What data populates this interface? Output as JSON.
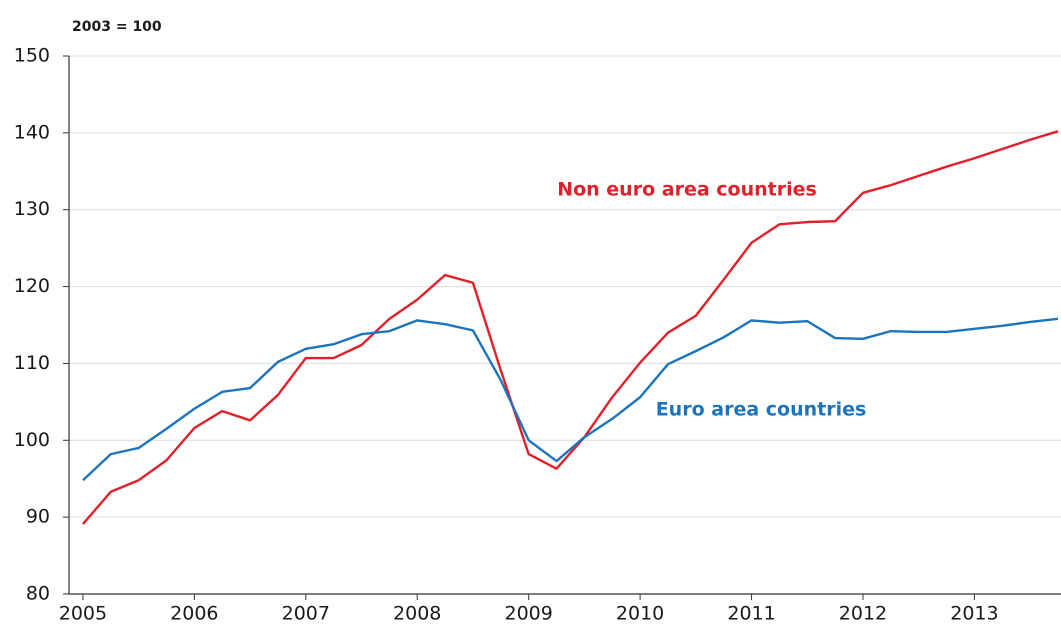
{
  "chart_data": {
    "type": "line",
    "y_axis_label": "2003 = 100",
    "annotations": [
      "Non euro area countries",
      "Euro area countries"
    ],
    "x": [
      2005,
      2005.25,
      2005.5,
      2005.75,
      2006,
      2006.25,
      2006.5,
      2006.75,
      2007,
      2007.25,
      2007.5,
      2007.75,
      2008,
      2008.25,
      2008.5,
      2008.75,
      2009,
      2009.25,
      2009.5,
      2009.75,
      2010,
      2010.25,
      2010.5,
      2010.75,
      2011,
      2011.25,
      2011.5,
      2011.75,
      2012,
      2012.25,
      2012.5,
      2012.75,
      2013,
      2013.25,
      2013.5,
      2013.75
    ],
    "series": [
      {
        "name": "Non euro area countries",
        "color": "#e2202a",
        "values": [
          89.1,
          93.3,
          94.8,
          97.4,
          101.6,
          103.8,
          102.6,
          105.9,
          110.7,
          110.7,
          112.4,
          115.8,
          118.3,
          121.5,
          120.5,
          109.1,
          98.2,
          96.3,
          100.4,
          105.6,
          110.1,
          114.0,
          116.2,
          120.9,
          125.7,
          128.1,
          128.4,
          128.5,
          132.2,
          133.2,
          134.4,
          135.6,
          136.7,
          137.9,
          139.1,
          140.2
        ]
      },
      {
        "name": "Euro area countries",
        "color": "#1c75bc",
        "values": [
          94.8,
          98.2,
          99.0,
          101.5,
          104.1,
          106.3,
          106.8,
          110.2,
          111.9,
          112.5,
          113.8,
          114.2,
          115.6,
          115.1,
          114.3,
          107.8,
          100.0,
          97.3,
          100.4,
          102.8,
          105.6,
          109.9,
          111.6,
          113.4,
          115.6,
          115.3,
          115.5,
          113.3,
          113.2,
          114.2,
          114.1,
          114.1,
          114.5,
          114.9,
          115.4,
          115.8
        ]
      }
    ],
    "xlim": [
      2004.875,
      2013.75
    ],
    "xticks": [
      2005,
      2006,
      2007,
      2008,
      2009,
      2010,
      2011,
      2012,
      2013
    ],
    "ylim": [
      80,
      150
    ],
    "yticks": [
      80,
      90,
      100,
      110,
      120,
      130,
      140,
      150
    ],
    "grid": true
  }
}
